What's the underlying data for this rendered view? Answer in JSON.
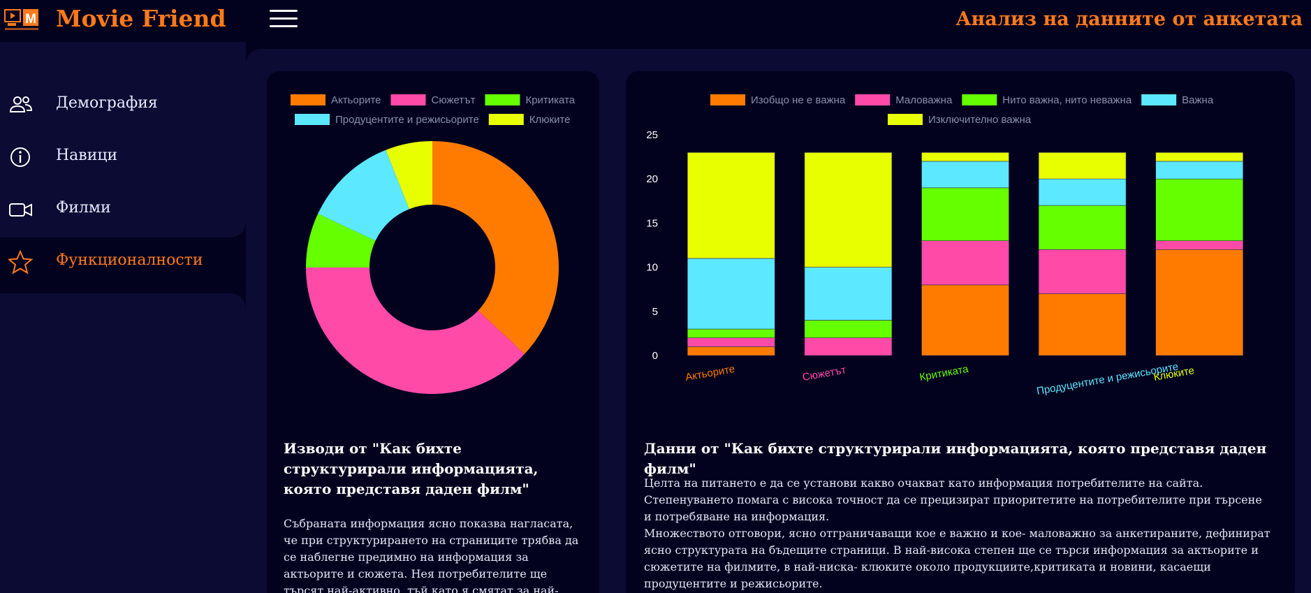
{
  "header": {
    "brand": "Movie Friend",
    "page_title": "Анализ на данните от анкетата"
  },
  "sidebar": {
    "items": [
      {
        "label": "Демография",
        "icon": "users-icon"
      },
      {
        "label": "Навици",
        "icon": "info-icon"
      },
      {
        "label": "Филми",
        "icon": "video-camera-icon"
      },
      {
        "label": "Функционалности",
        "icon": "star-icon",
        "active": true
      }
    ]
  },
  "colors": {
    "orange": "#ff7b00",
    "pink": "#ff4aa8",
    "green": "#66ff00",
    "cyan": "#5ce8ff",
    "yellow": "#e8ff00"
  },
  "chart_data": [
    {
      "type": "doughnut",
      "legend": [
        "Актьорите",
        "Сюжетът",
        "Критиката",
        "Продуцентите и режисьорите",
        "Клюките"
      ],
      "values": [
        37,
        38,
        7,
        12,
        6
      ],
      "colors": [
        "#ff7b00",
        "#ff4aa8",
        "#66ff00",
        "#5ce8ff",
        "#e8ff00"
      ],
      "legend_position": "top"
    },
    {
      "type": "bar",
      "stacked": true,
      "categories": [
        "Актьорите",
        "Сюжетът",
        "Критиката",
        "Продуцентите и режисьорите",
        "Клюките"
      ],
      "category_colors": [
        "#ff7b00",
        "#ff4aa8",
        "#66ff00",
        "#5ce8ff",
        "#e8ff00"
      ],
      "series": [
        {
          "name": "Изобщо не е важна",
          "color": "#ff7b00",
          "values": [
            1,
            0,
            8,
            7,
            12
          ]
        },
        {
          "name": "Маловажна",
          "color": "#ff4aa8",
          "values": [
            1,
            2,
            5,
            5,
            1
          ]
        },
        {
          "name": "Нито важна, нито неважна",
          "color": "#66ff00",
          "values": [
            1,
            2,
            6,
            5,
            7
          ]
        },
        {
          "name": "Важна",
          "color": "#5ce8ff",
          "values": [
            8,
            6,
            3,
            3,
            2
          ]
        },
        {
          "name": "Изключително важна",
          "color": "#e8ff00",
          "values": [
            12,
            13,
            1,
            3,
            1
          ]
        }
      ],
      "ylim": [
        0,
        25
      ],
      "yticks": [
        0,
        5,
        10,
        15,
        20,
        25
      ],
      "legend_position": "top"
    }
  ],
  "left_card": {
    "title": "Изводи от \"Как бихте структурирали информацията, която представя даден филм\"",
    "body": "Събраната информация ясно показва нагласата, че при структурирането на страниците трябва да се наблегне предимно на информация за актьорите и сюжета. Нея потребителите ще търсят най-активно, тъй като я смятат за най-"
  },
  "right_card": {
    "title": "Данни от \"Как бихте структурирали информацията, която представя даден филм\"",
    "body_1": "Целта на питането е да се установи какво очакват като информация потребителите на сайта. Степенуването помага с висока точност да се прецизират приоритетите на потребителите при търсене и потребяване на информация.",
    "body_2": "Множеството отговори, ясно отграничаващи кое е важно и кое- маловажно за анкетираните, дефинират ясно структурата на бъдещите страници. В най-висока степен ще се търси информация за актьорите и сюжетите на филмите, в най-ниска- клюките около продукциите,критиката и новини, касаещи продуцентите и режисьорите."
  }
}
